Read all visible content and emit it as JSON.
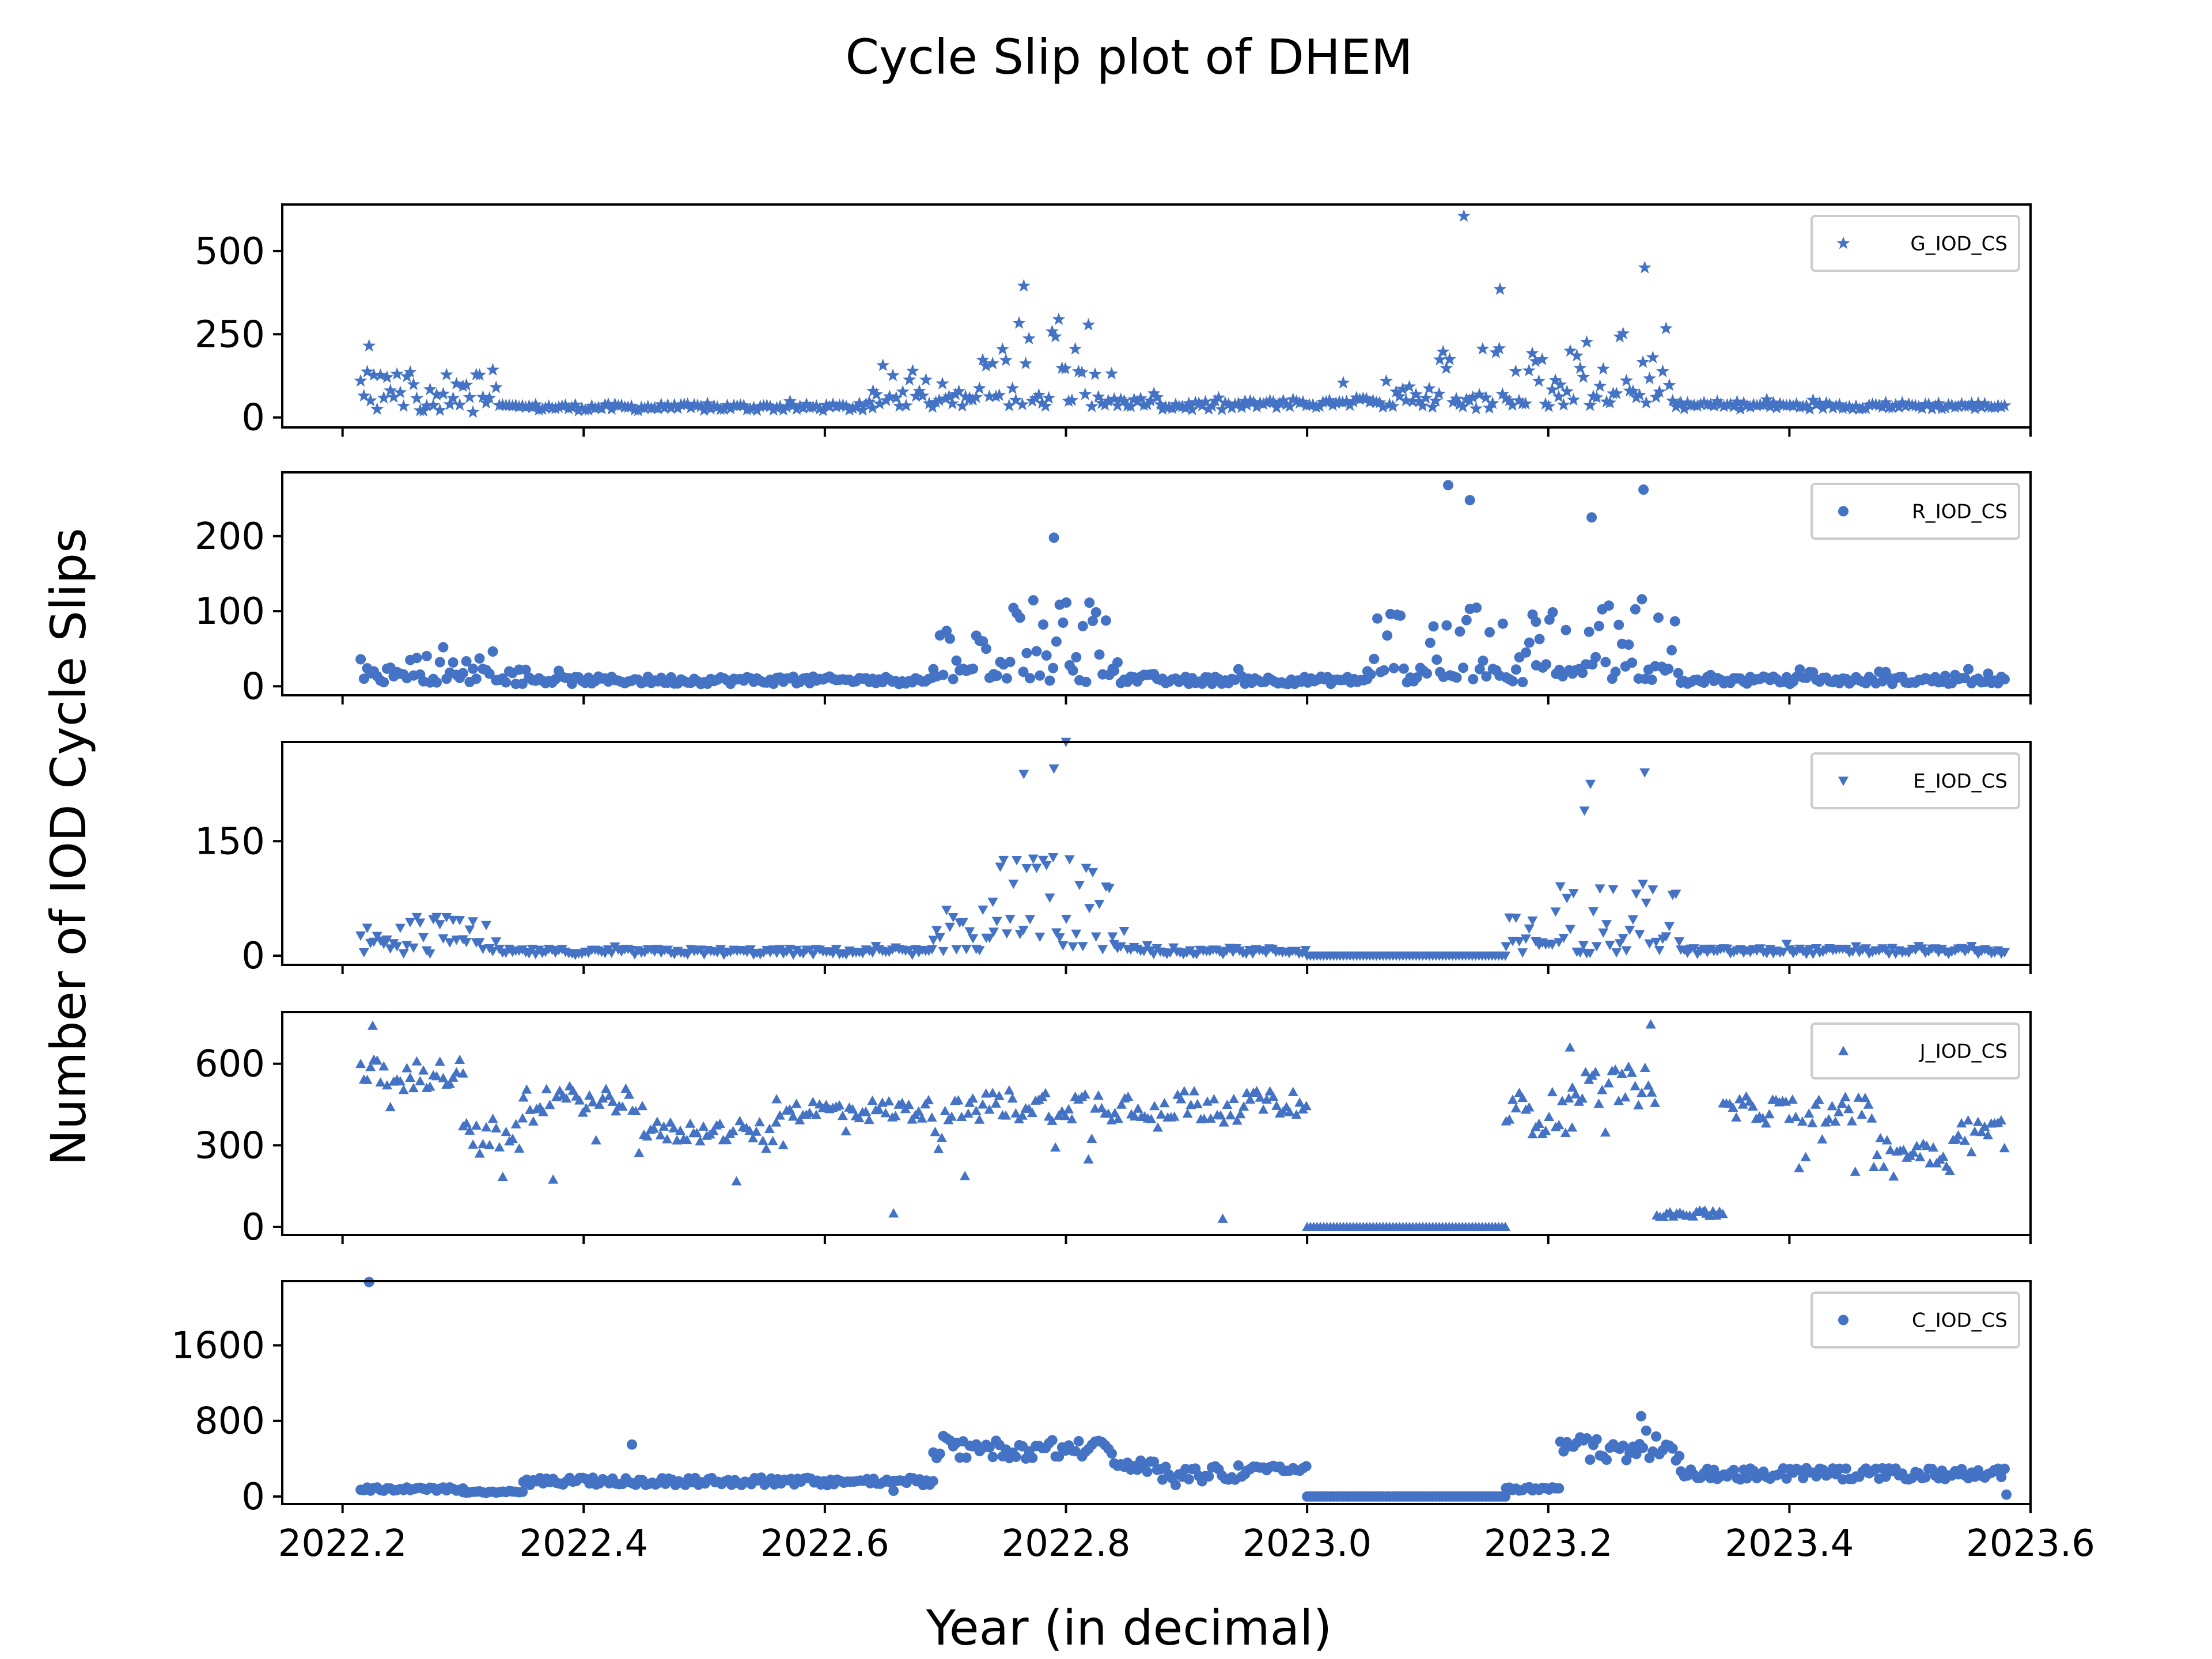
{
  "chart_data": {
    "type": "scatter",
    "title": "Cycle Slip plot of DHEM",
    "xlabel": "Year (in decimal)",
    "ylabel": "Number of IOD Cycle Slips",
    "xlim": [
      2022.15,
      2023.6
    ],
    "xticks": [
      2022.2,
      2022.4,
      2022.6,
      2022.8,
      2023.0,
      2023.2,
      2023.4,
      2023.6
    ],
    "xtick_labels": [
      "2022.2",
      "2022.4",
      "2022.6",
      "2022.8",
      "2023.0",
      "2023.2",
      "2023.4",
      "2023.6"
    ],
    "color": "#4472C4",
    "panels": [
      {
        "name": "G_IOD_CS",
        "marker": "star",
        "ylim": [
          -30,
          640
        ],
        "yticks": [
          0,
          250,
          500
        ],
        "ytick_labels": [
          "0",
          "250",
          "500"
        ],
        "segments": [
          [
            2022.215,
            2022.33,
            40,
            25,
            110,
            0.5,
            220
          ],
          [
            2022.33,
            2022.64,
            30,
            10,
            18,
            0.08,
            70
          ],
          [
            2022.64,
            2022.72,
            55,
            25,
            120,
            0.25,
            160
          ],
          [
            2022.72,
            2022.84,
            50,
            20,
            260,
            0.55,
            400
          ],
          [
            2022.84,
            2022.88,
            45,
            15,
            30,
            0.1,
            80
          ],
          [
            2022.88,
            2022.95,
            35,
            15,
            25,
            0.1,
            70
          ],
          [
            2022.95,
            2023.03,
            40,
            12,
            20,
            0.1,
            80
          ],
          [
            2023.03,
            2023.11,
            45,
            15,
            80,
            0.3,
            180
          ],
          [
            2023.11,
            2023.21,
            45,
            20,
            220,
            0.5,
            600
          ],
          [
            2023.21,
            2023.31,
            55,
            25,
            220,
            0.6,
            450
          ],
          [
            2023.31,
            2023.58,
            35,
            10,
            20,
            0.08,
            100
          ]
        ],
        "fixed_points": [
          [
            2023.13,
            605
          ],
          [
            2022.765,
            395
          ],
          [
            2023.28,
            450
          ],
          [
            2023.16,
            385
          ],
          [
            2022.222,
            215
          ]
        ]
      },
      {
        "name": "R_IOD_CS",
        "marker": "circle",
        "ylim": [
          -12,
          285
        ],
        "yticks": [
          0,
          100,
          200
        ],
        "ytick_labels": [
          "0",
          "100",
          "200"
        ],
        "segments": [
          [
            2022.215,
            2022.33,
            15,
            10,
            40,
            0.35,
            120
          ],
          [
            2022.33,
            2022.69,
            8,
            5,
            15,
            0.06,
            30
          ],
          [
            2022.69,
            2022.74,
            15,
            8,
            60,
            0.45,
            110
          ],
          [
            2022.74,
            2022.84,
            15,
            10,
            100,
            0.7,
            200
          ],
          [
            2022.84,
            2022.88,
            10,
            6,
            25,
            0.15,
            40
          ],
          [
            2022.88,
            2023.05,
            8,
            5,
            15,
            0.08,
            30
          ],
          [
            2023.05,
            2023.19,
            15,
            10,
            90,
            0.5,
            270
          ],
          [
            2023.19,
            2023.31,
            20,
            12,
            100,
            0.6,
            265
          ],
          [
            2023.31,
            2023.58,
            8,
            5,
            15,
            0.08,
            55
          ]
        ],
        "fixed_points": [
          [
            2023.117,
            268
          ],
          [
            2023.279,
            262
          ],
          [
            2023.236,
            225
          ],
          [
            2023.135,
            248
          ],
          [
            2022.79,
            198
          ]
        ]
      },
      {
        "name": "E_IOD_CS",
        "marker": "tri-down",
        "ylim": [
          -12,
          280
        ],
        "yticks": [
          0,
          150
        ],
        "ytick_labels": [
          "0",
          "150"
        ],
        "segments": [
          [
            2022.215,
            2022.33,
            12,
            10,
            40,
            0.45,
            130
          ],
          [
            2022.33,
            2022.69,
            5,
            4,
            8,
            0.05,
            25
          ],
          [
            2022.69,
            2022.74,
            15,
            10,
            60,
            0.5,
            150
          ],
          [
            2022.74,
            2022.84,
            20,
            15,
            110,
            0.65,
            280
          ],
          [
            2022.84,
            2022.87,
            10,
            6,
            30,
            0.3,
            60
          ],
          [
            2022.87,
            2023.0,
            6,
            4,
            8,
            0.05,
            20
          ],
          [
            2023.0,
            2023.165,
            0,
            0,
            0,
            0,
            0
          ],
          [
            2023.165,
            2023.21,
            12,
            8,
            50,
            0.35,
            110
          ],
          [
            2023.21,
            2023.31,
            15,
            12,
            80,
            0.6,
            240
          ],
          [
            2023.31,
            2023.58,
            6,
            4,
            10,
            0.06,
            60
          ]
        ],
        "fixed_points": [
          [
            2022.8,
            280
          ],
          [
            2022.79,
            245
          ],
          [
            2022.765,
            238
          ],
          [
            2023.28,
            240
          ],
          [
            2023.235,
            225
          ],
          [
            2023.23,
            190
          ]
        ]
      },
      {
        "name": "J_IOD_CS",
        "marker": "tri-up",
        "ylim": [
          -30,
          790
        ],
        "yticks": [
          0,
          300,
          600
        ],
        "ytick_labels": [
          "0",
          "300",
          "600"
        ],
        "segments": [
          [
            2022.215,
            2022.3,
            560,
            60,
            -250,
            0.12,
            50
          ],
          [
            2022.3,
            2022.35,
            340,
            60,
            -160,
            0.15,
            30
          ],
          [
            2022.35,
            2022.45,
            470,
            50,
            -300,
            0.12,
            60
          ],
          [
            2022.45,
            2022.56,
            350,
            40,
            -200,
            0.12,
            70
          ],
          [
            2022.56,
            2022.72,
            430,
            40,
            -250,
            0.1,
            50
          ],
          [
            2022.72,
            2022.95,
            450,
            60,
            -250,
            0.12,
            30
          ],
          [
            2022.95,
            2023.0,
            460,
            40,
            -100,
            0.05,
            100
          ],
          [
            2023.0,
            2023.165,
            0,
            0,
            0,
            0,
            0
          ],
          [
            2023.165,
            2023.22,
            420,
            80,
            -250,
            0.25,
            100
          ],
          [
            2023.22,
            2023.29,
            520,
            70,
            -250,
            0.12,
            100
          ],
          [
            2023.29,
            2023.345,
            110,
            25,
            80,
            0.15,
            60
          ],
          [
            2023.345,
            2023.47,
            430,
            50,
            -250,
            0.08,
            100
          ],
          [
            2023.47,
            2023.54,
            280,
            60,
            -150,
            0.12,
            100
          ],
          [
            2023.54,
            2023.58,
            360,
            50,
            -150,
            0.1,
            100
          ]
        ],
        "fixed_points": [
          [
            2022.225,
            740
          ],
          [
            2023.285,
            745
          ],
          [
            2023.218,
            660
          ],
          [
            2022.93,
            30
          ],
          [
            2022.657,
            50
          ],
          [
            2023.33,
            60
          ]
        ]
      },
      {
        "name": "C_IOD_CS",
        "marker": "circle",
        "ylim": [
          -80,
          2280
        ],
        "yticks": [
          0,
          800,
          1600
        ],
        "ytick_labels": [
          "0",
          "800",
          "1600"
        ],
        "segments": [
          [
            2022.215,
            2022.3,
            340,
            40,
            80,
            0.15,
            100
          ],
          [
            2022.3,
            2022.35,
            300,
            60,
            150,
            0.2,
            60
          ],
          [
            2022.35,
            2022.69,
            320,
            30,
            40,
            0.06,
            200
          ],
          [
            2022.69,
            2022.84,
            500,
            100,
            150,
            0.2,
            780
          ],
          [
            2022.84,
            2022.88,
            330,
            50,
            -100,
            0.1,
            200
          ],
          [
            2022.88,
            2022.95,
            250,
            80,
            -150,
            0.2,
            20
          ],
          [
            2022.95,
            2023.0,
            300,
            30,
            0,
            0.05,
            0
          ],
          [
            2023.0,
            2023.165,
            0,
            0,
            0,
            0,
            0
          ],
          [
            2023.165,
            2023.21,
            380,
            100,
            200,
            0.3,
            100
          ],
          [
            2023.21,
            2023.31,
            500,
            120,
            200,
            0.25,
            850
          ],
          [
            2023.31,
            2023.58,
            330,
            40,
            50,
            0.06,
            300
          ]
        ],
        "fixed_points": [
          [
            2022.222,
            2270
          ],
          [
            2023.277,
            850
          ],
          [
            2022.657,
            60
          ],
          [
            2023.58,
            20
          ],
          [
            2023.57,
            280
          ],
          [
            2022.44,
            550
          ]
        ]
      }
    ]
  }
}
